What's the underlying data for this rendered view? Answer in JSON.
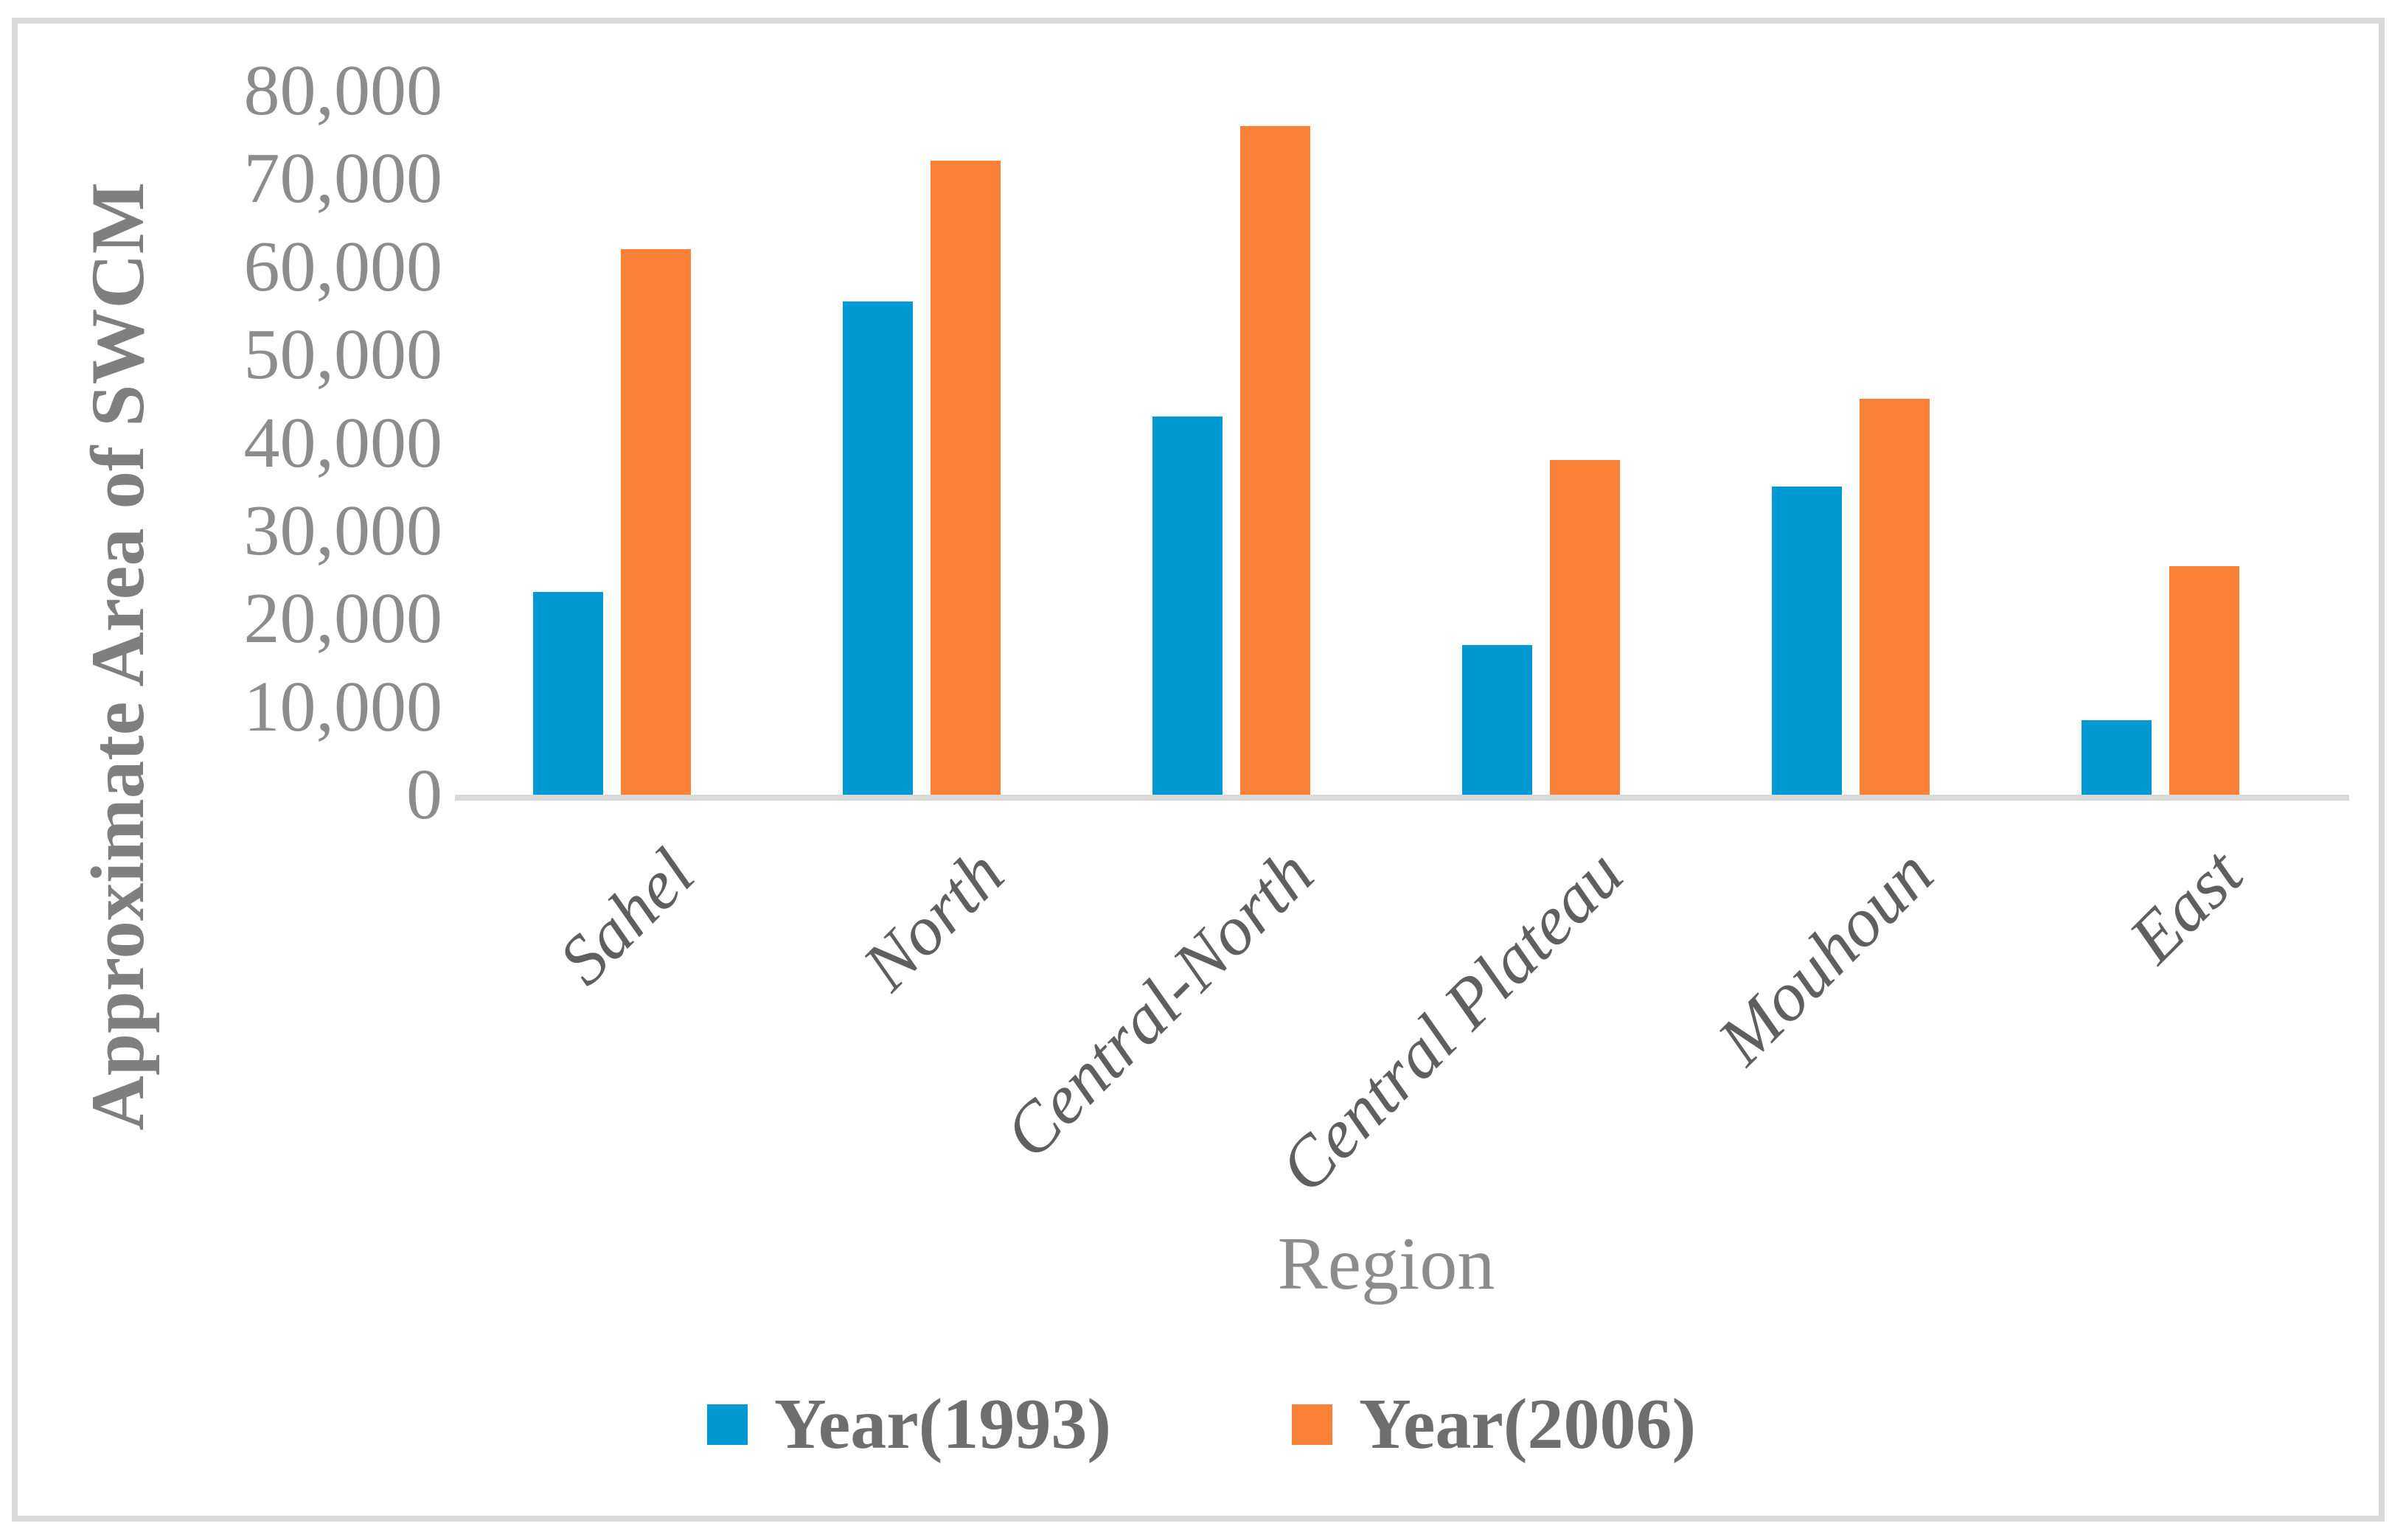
{
  "chart_data": {
    "type": "bar",
    "title": "",
    "xlabel": "Region",
    "ylabel": "Approximate Area of SWCM",
    "categories": [
      "Sahel",
      "North",
      "Central-North",
      "Central Plateau",
      "Mouhoun",
      "East"
    ],
    "series": [
      {
        "name": "Year(1993)",
        "color": "#0099D3",
        "values": [
          23000,
          56000,
          43000,
          17000,
          35000,
          8500
        ]
      },
      {
        "name": "Year(2006)",
        "color": "#FB8038",
        "values": [
          62000,
          72000,
          76000,
          38000,
          45000,
          26000
        ]
      }
    ],
    "ylim": [
      0,
      80000
    ],
    "ytick_step": 10000,
    "ytick_labels": [
      "0",
      "10,000",
      "20,000",
      "30,000",
      "40,000",
      "50,000",
      "60,000",
      "70,000",
      "80,000"
    ],
    "grid": false,
    "legend_position": "bottom",
    "bar_orientation": "vertical"
  },
  "colors": {
    "background": "#FFFFFF",
    "frame_border": "#D9D9D9",
    "axis_line": "#D9D9D9",
    "tick_text": "#8C8C8C",
    "category_text": "#5F5F5F",
    "y_title_text": "#7F7F7F",
    "x_title_text": "#8C8C8C",
    "legend_text": "#6E6E6E"
  }
}
